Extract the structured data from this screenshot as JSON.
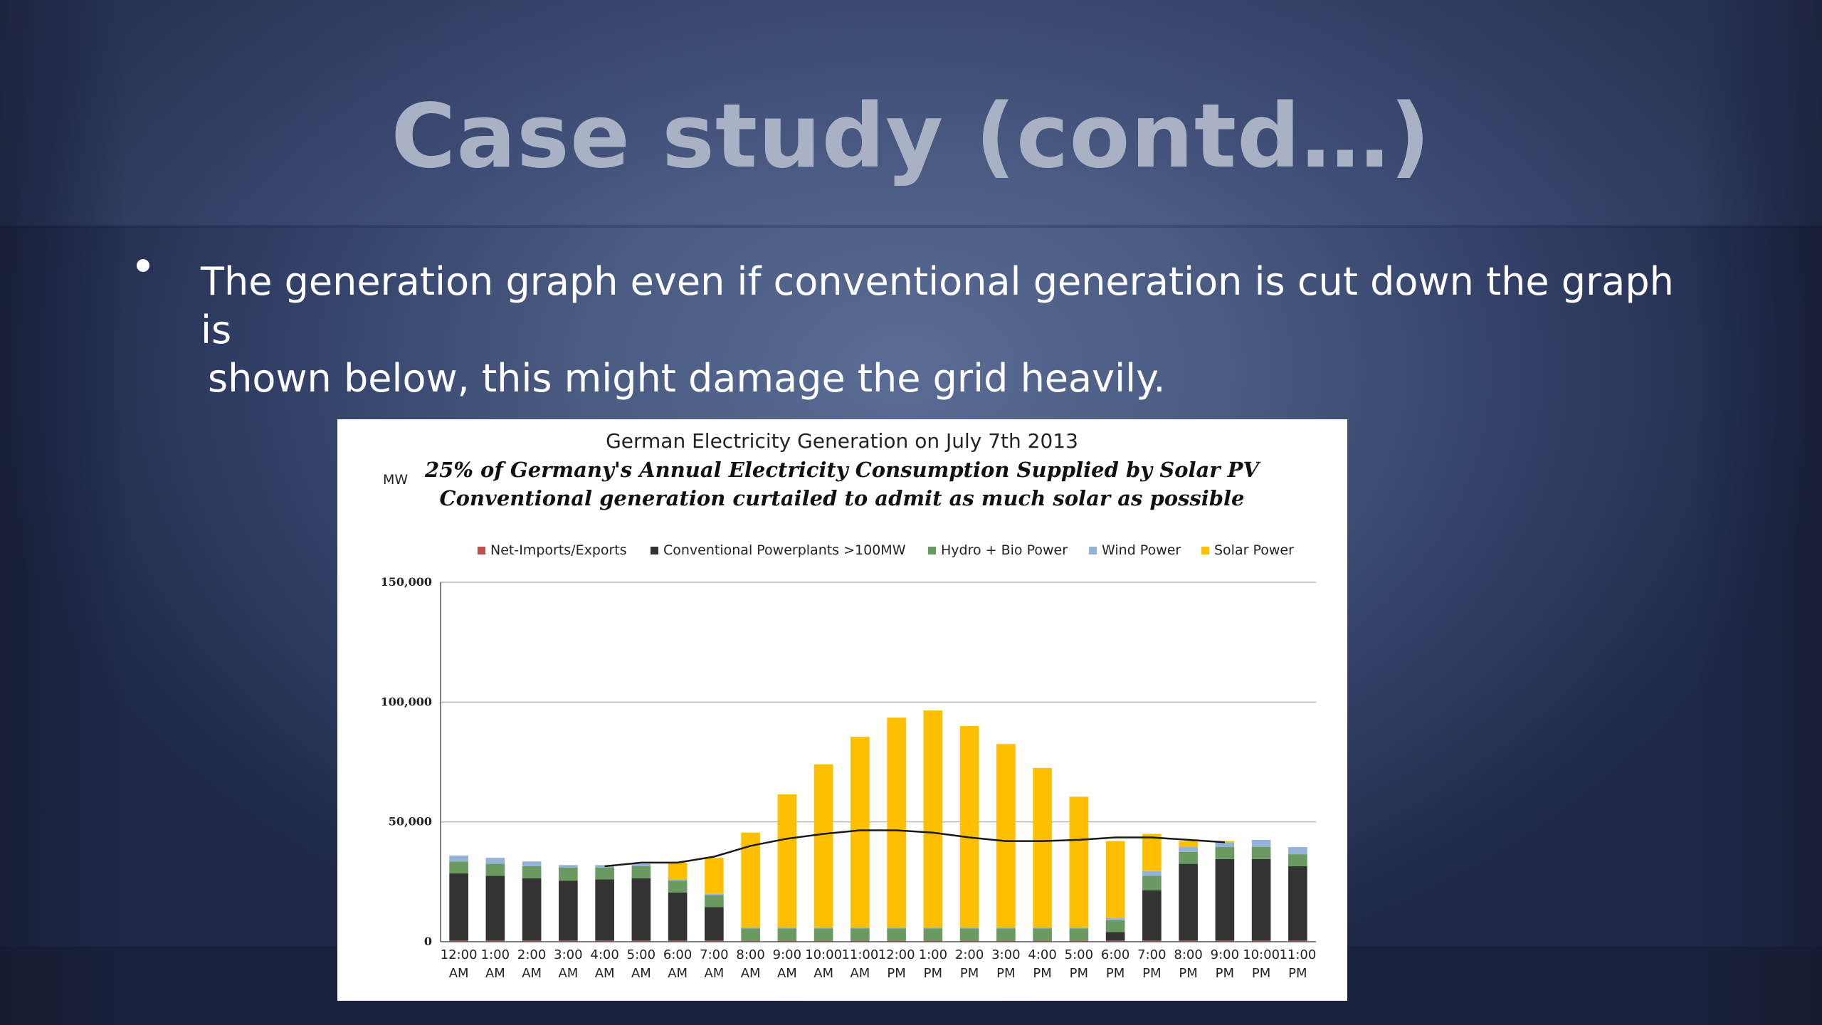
{
  "slide": {
    "title": "Case study (contd…)",
    "bullet_line1": "The generation graph even if conventional generation is cut down the graph is",
    "bullet_line2": "shown below, this might damage the grid heavily."
  },
  "colors": {
    "title": "#a9b1c4",
    "net_imports": "#c0504d",
    "conventional": "#333333",
    "hydro_bio": "#6a9a62",
    "wind": "#95b3d7",
    "solar": "#fdbf00",
    "demand_line": "#1a1a1a"
  },
  "chart_data": {
    "type": "bar",
    "stacked": true,
    "title": "German Electricity Generation on July 7th 2013",
    "subtitle1": "25% of Germany's Annual Electricity Consumption Supplied by Solar PV",
    "subtitle2": "Conventional generation curtailed to admit as much solar as possible",
    "ylabel": "MW",
    "ylim": [
      0,
      150000
    ],
    "yticks": [
      "150,000",
      "100,000",
      "50,000",
      "0"
    ],
    "ytick_values": [
      150000,
      100000,
      50000,
      0
    ],
    "legend_position": "top",
    "grid": true,
    "categories": [
      [
        "12:00",
        "AM"
      ],
      [
        "1:00",
        "AM"
      ],
      [
        "2:00",
        "AM"
      ],
      [
        "3:00",
        "AM"
      ],
      [
        "4:00",
        "AM"
      ],
      [
        "5:00",
        "AM"
      ],
      [
        "6:00",
        "AM"
      ],
      [
        "7:00",
        "AM"
      ],
      [
        "8:00",
        "AM"
      ],
      [
        "9:00",
        "AM"
      ],
      [
        "10:00",
        "AM"
      ],
      [
        "11:00",
        "AM"
      ],
      [
        "12:00",
        "PM"
      ],
      [
        "1:00",
        "PM"
      ],
      [
        "2:00",
        "PM"
      ],
      [
        "3:00",
        "PM"
      ],
      [
        "4:00",
        "PM"
      ],
      [
        "5:00",
        "PM"
      ],
      [
        "6:00",
        "PM"
      ],
      [
        "7:00",
        "PM"
      ],
      [
        "8:00",
        "PM"
      ],
      [
        "9:00",
        "PM"
      ],
      [
        "10:00",
        "PM"
      ],
      [
        "11:00",
        "PM"
      ]
    ],
    "series": [
      {
        "name": "Net-Imports/Exports",
        "color": "#c0504d",
        "values": [
          500,
          500,
          500,
          500,
          500,
          500,
          500,
          500,
          500,
          500,
          500,
          500,
          500,
          500,
          500,
          500,
          500,
          500,
          500,
          500,
          500,
          500,
          500,
          500
        ]
      },
      {
        "name": "Conventional Powerplants >100MW",
        "color": "#333333",
        "values": [
          28000,
          27000,
          26000,
          25000,
          25500,
          26000,
          20000,
          14000,
          0,
          0,
          0,
          0,
          0,
          0,
          0,
          0,
          0,
          0,
          3500,
          21000,
          32000,
          34000,
          34000,
          31000
        ]
      },
      {
        "name": "Hydro + Bio Power",
        "color": "#6a9a62",
        "values": [
          5000,
          5000,
          5000,
          5500,
          5000,
          5000,
          5000,
          5000,
          5000,
          5000,
          5000,
          5000,
          5000,
          5000,
          5000,
          5000,
          5000,
          5000,
          5000,
          6000,
          5000,
          5000,
          5000,
          5000
        ]
      },
      {
        "name": "Wind Power",
        "color": "#95b3d7",
        "values": [
          2500,
          2500,
          2000,
          1000,
          1000,
          1000,
          500,
          500,
          500,
          500,
          500,
          500,
          500,
          500,
          500,
          500,
          500,
          500,
          1000,
          2000,
          2000,
          2000,
          3000,
          3000
        ]
      },
      {
        "name": "Solar Power",
        "color": "#fdbf00",
        "values": [
          0,
          0,
          0,
          0,
          0,
          0,
          7000,
          15000,
          39500,
          55500,
          68000,
          79500,
          87500,
          90500,
          84000,
          76500,
          66500,
          54500,
          32000,
          15500,
          2500,
          500,
          0,
          0
        ]
      }
    ],
    "demand_line": {
      "values": [
        null,
        null,
        null,
        null,
        31500,
        33000,
        33000,
        35500,
        40000,
        43000,
        45000,
        46500,
        46500,
        45500,
        43500,
        42000,
        42000,
        42500,
        43500,
        43500,
        42500,
        41500,
        null,
        null
      ]
    }
  }
}
